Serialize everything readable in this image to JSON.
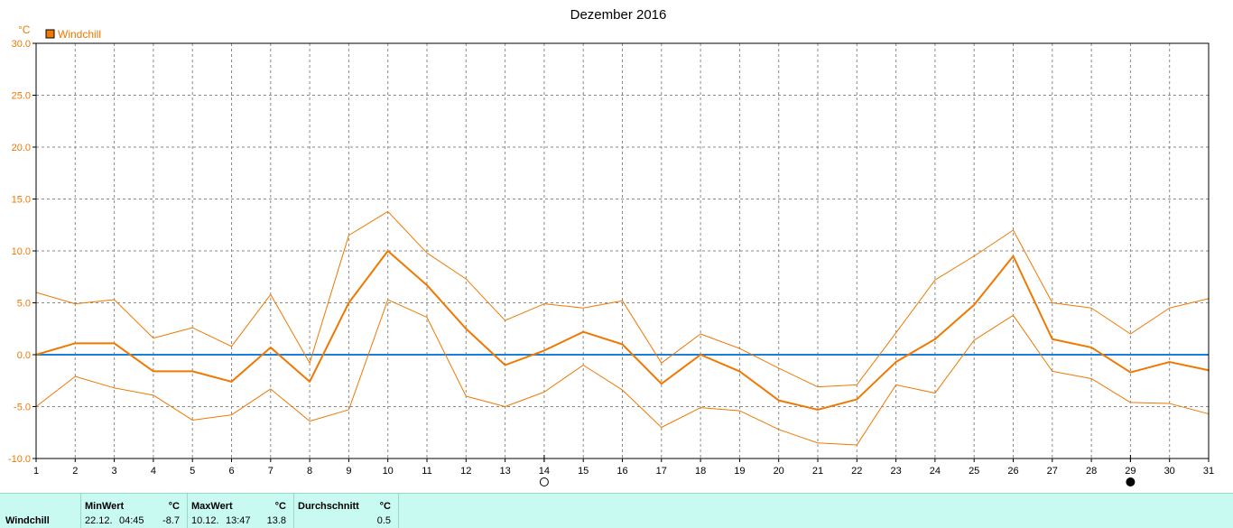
{
  "chart_data": {
    "type": "line",
    "title": "Dezember 2016",
    "ylabel": "°C",
    "legend": [
      {
        "name": "Windchill",
        "color": "#f07800"
      }
    ],
    "ylim": [
      -10,
      30
    ],
    "yticks": [
      "30.0",
      "25.0",
      "20.0",
      "15.0",
      "10.0",
      "5.0",
      "0.0",
      "-5.0",
      "-10.0"
    ],
    "ytick_values": [
      30,
      25,
      20,
      15,
      10,
      5,
      0,
      -5,
      -10
    ],
    "x": [
      1,
      2,
      3,
      4,
      5,
      6,
      7,
      8,
      9,
      10,
      11,
      12,
      13,
      14,
      15,
      16,
      17,
      18,
      19,
      20,
      21,
      22,
      23,
      24,
      25,
      26,
      27,
      28,
      29,
      30,
      31
    ],
    "grid": true,
    "series": [
      {
        "name": "Windchill",
        "values": [
          0.0,
          1.1,
          1.1,
          -1.6,
          -1.6,
          -2.6,
          0.7,
          -2.6,
          5.0,
          10.0,
          6.7,
          2.5,
          -1.0,
          0.4,
          2.2,
          1.0,
          -2.8,
          0.0,
          -1.6,
          -4.4,
          -5.3,
          -4.3,
          -0.7,
          1.5,
          4.8,
          9.5,
          1.5,
          0.7,
          -1.7,
          -0.7,
          -1.5
        ],
        "color": "#f07800",
        "width": 2
      },
      {
        "values": [
          6.0,
          4.9,
          5.3,
          1.6,
          2.6,
          0.8,
          5.8,
          -0.8,
          11.5,
          13.8,
          9.8,
          7.3,
          3.3,
          4.9,
          4.5,
          5.2,
          -0.8,
          2.0,
          0.6,
          -1.3,
          -3.1,
          -2.9,
          2.1,
          7.2,
          9.5,
          12.0,
          5.0,
          4.5,
          2.0,
          4.5,
          5.4
        ],
        "color": "#f07800",
        "width": 1
      },
      {
        "values": [
          -5.0,
          -2.1,
          -3.2,
          -3.9,
          -6.3,
          -5.8,
          -3.3,
          -6.4,
          -5.3,
          5.3,
          3.6,
          -4.0,
          -5.0,
          -3.6,
          -1.0,
          -3.4,
          -7.0,
          -5.1,
          -5.4,
          -7.2,
          -8.5,
          -8.7,
          -2.9,
          -3.7,
          1.4,
          3.8,
          -1.6,
          -2.3,
          -4.6,
          -4.7,
          -5.7
        ],
        "color": "#f07800",
        "width": 1
      },
      {
        "values": [
          0,
          0,
          0,
          0,
          0,
          0,
          0,
          0,
          0,
          0,
          0,
          0,
          0,
          0,
          0,
          0,
          0,
          0,
          0,
          0,
          0,
          0,
          0,
          0,
          0,
          0,
          0,
          0,
          0,
          0,
          0
        ],
        "color": "#1a7fd8",
        "width": 2
      }
    ],
    "moon_markers": [
      {
        "day": 14,
        "phase": "full-moon"
      },
      {
        "day": 29,
        "phase": "new-moon"
      }
    ]
  },
  "stats": {
    "row_label": "Windchill",
    "min": {
      "header": "MinWert",
      "unit": "°C",
      "date": "22.12.",
      "time": "04:45",
      "value": "-8.7"
    },
    "max": {
      "header": "MaxWert",
      "unit": "°C",
      "date": "10.12.",
      "time": "13:47",
      "value": "13.8"
    },
    "avg": {
      "header": "Durchschnitt",
      "unit": "°C",
      "value": "0.5"
    }
  }
}
